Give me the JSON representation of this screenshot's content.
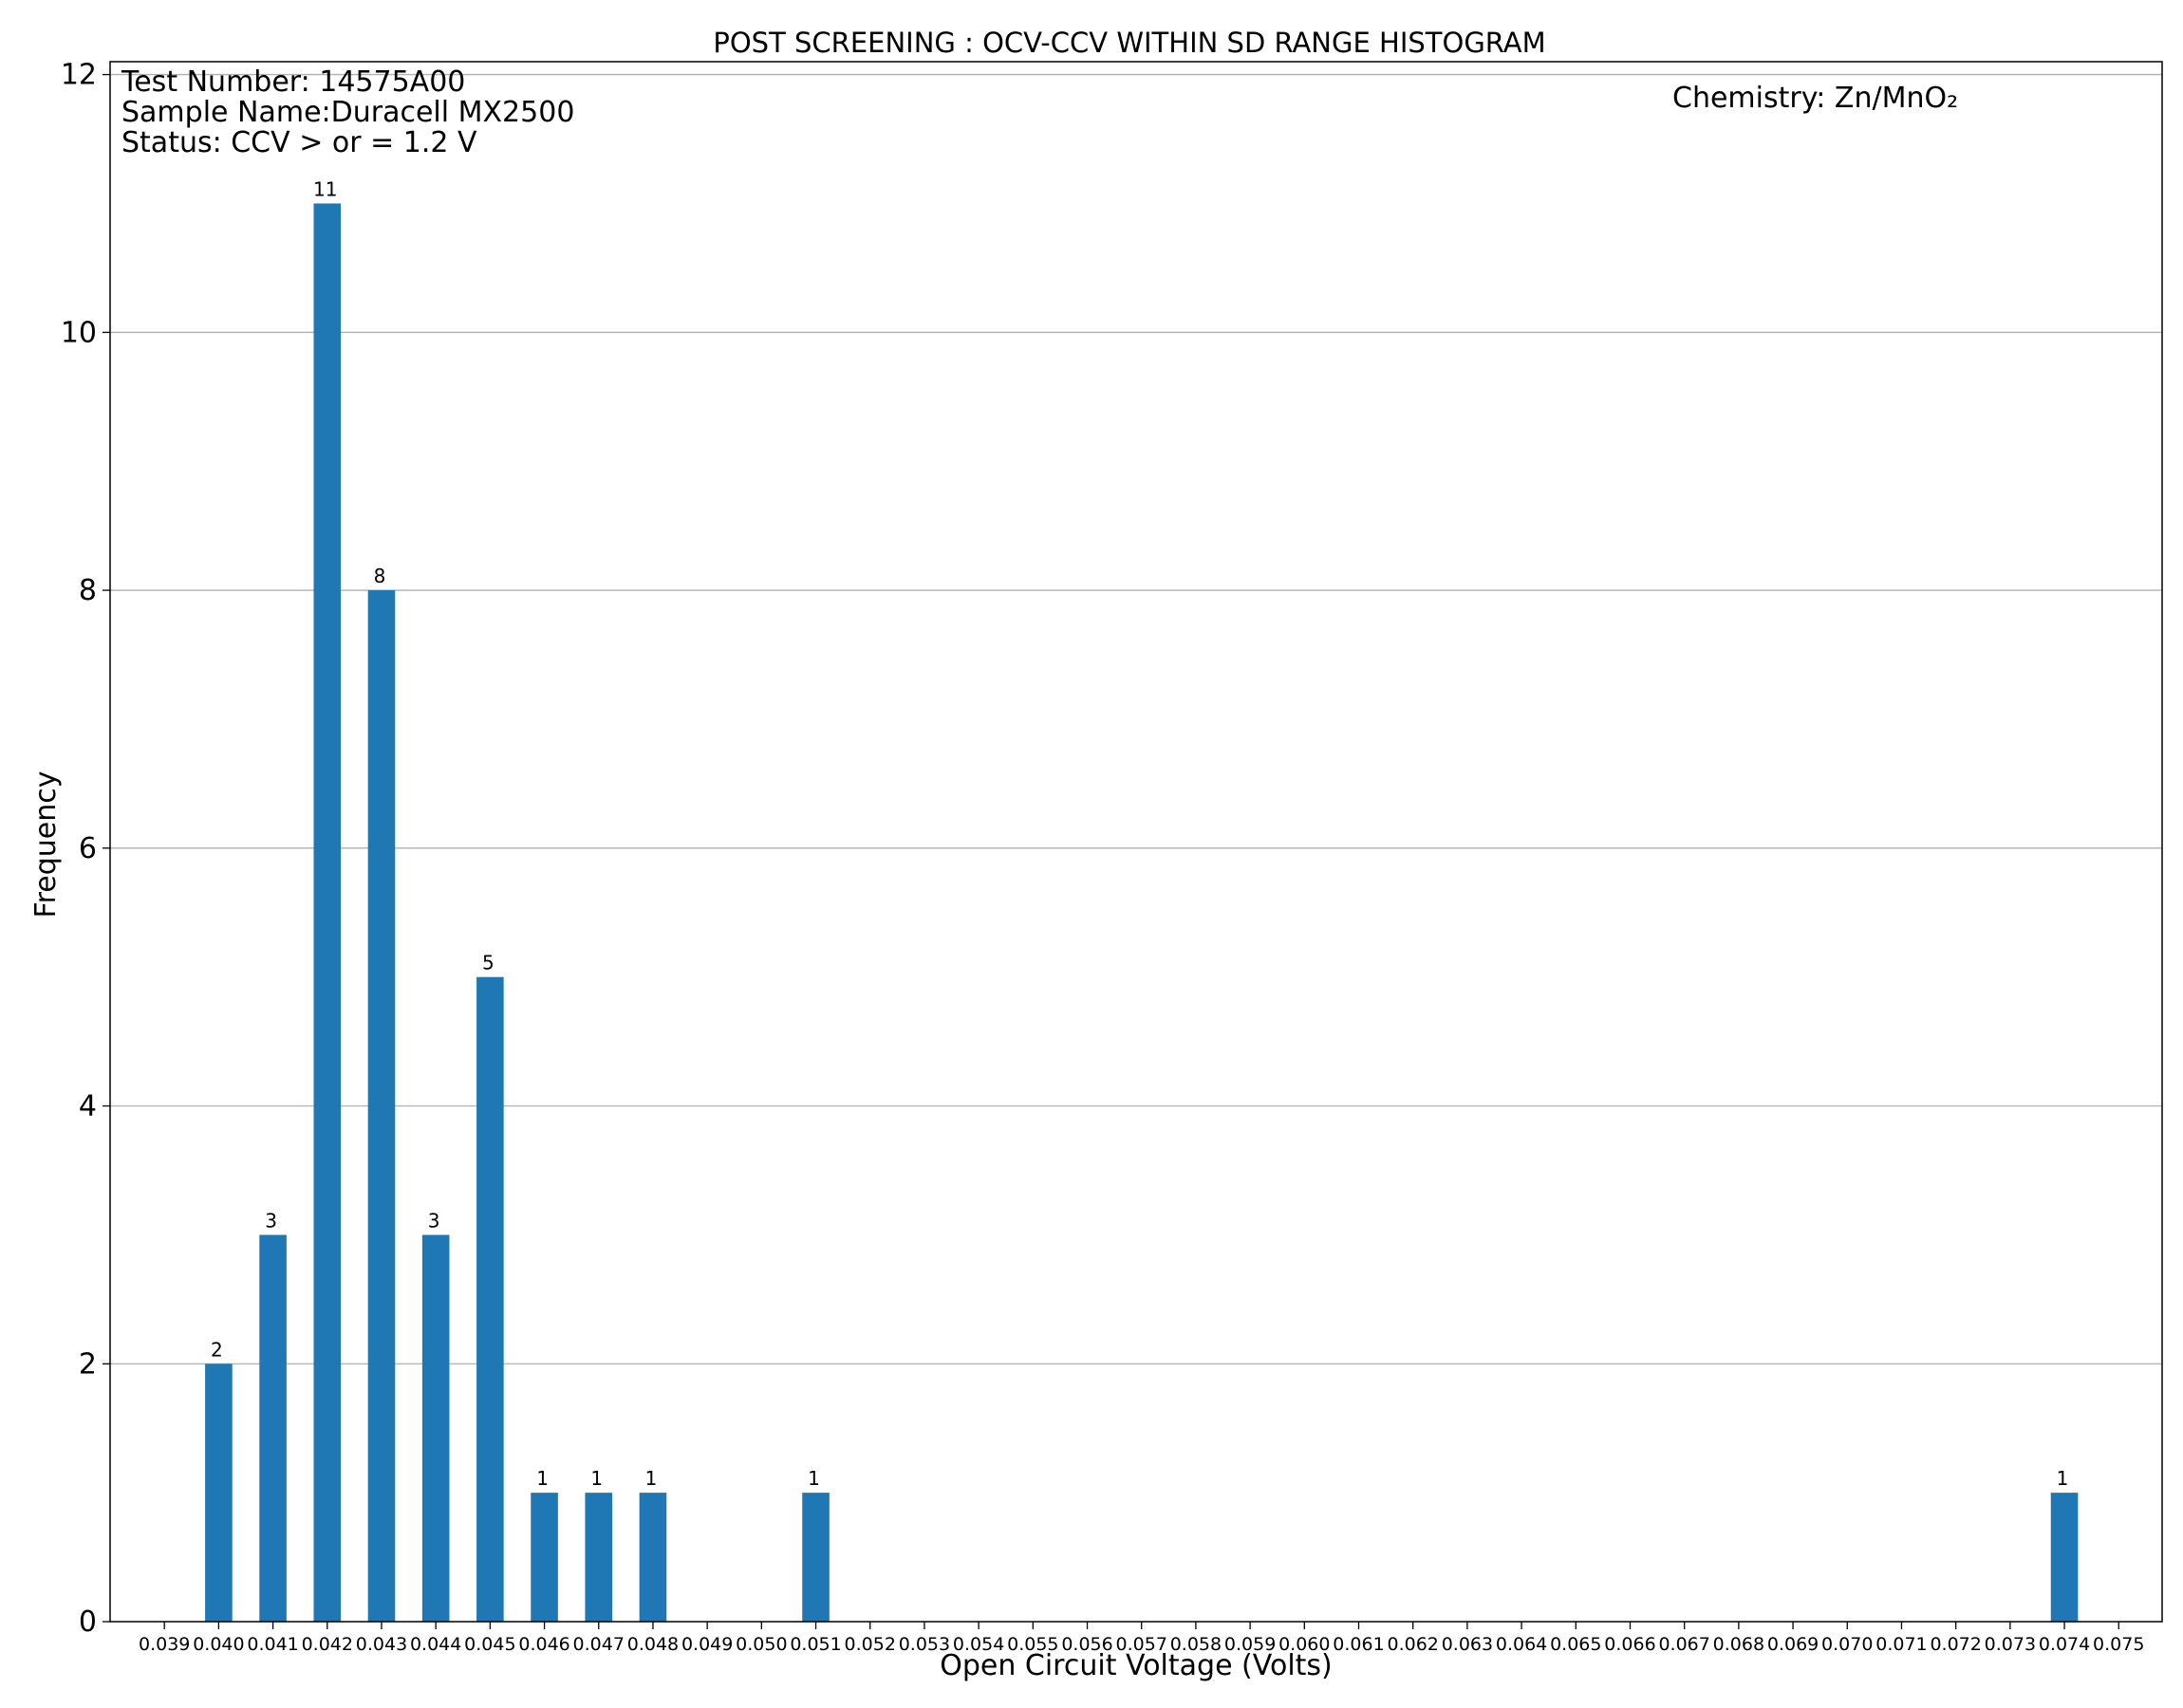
{
  "chart_data": {
    "type": "bar",
    "title": "POST SCREENING :  OCV-CCV WITHIN SD RANGE HISTOGRAM",
    "annotations": {
      "test_number": "Test Number: 14575A00",
      "sample_name": "Sample Name:Duracell MX2500",
      "status": "Status: CCV > or = 1.2 V",
      "chemistry": "Chemistry: Zn/MnO₂"
    },
    "xlabel": "Open Circuit Voltage (Volts)",
    "ylabel": "Frequency",
    "xlim": [
      0.038,
      0.0758
    ],
    "ylim": [
      0,
      12.1
    ],
    "x_ticks": [
      "0.039",
      "0.040",
      "0.041",
      "0.042",
      "0.043",
      "0.044",
      "0.045",
      "0.046",
      "0.047",
      "0.048",
      "0.049",
      "0.050",
      "0.051",
      "0.052",
      "0.053",
      "0.054",
      "0.055",
      "0.056",
      "0.057",
      "0.058",
      "0.059",
      "0.060",
      "0.061",
      "0.062",
      "0.063",
      "0.064",
      "0.065",
      "0.066",
      "0.067",
      "0.068",
      "0.069",
      "0.070",
      "0.071",
      "0.072",
      "0.073",
      "0.074",
      "0.075"
    ],
    "y_ticks": [
      "0",
      "2",
      "4",
      "6",
      "8",
      "10",
      "12"
    ],
    "bars": [
      {
        "x": 0.04,
        "value": 2,
        "label": "2"
      },
      {
        "x": 0.041,
        "value": 3,
        "label": "3"
      },
      {
        "x": 0.042,
        "value": 11,
        "label": "11"
      },
      {
        "x": 0.043,
        "value": 8,
        "label": "8"
      },
      {
        "x": 0.044,
        "value": 3,
        "label": "3"
      },
      {
        "x": 0.045,
        "value": 5,
        "label": "5"
      },
      {
        "x": 0.046,
        "value": 1,
        "label": "1"
      },
      {
        "x": 0.047,
        "value": 1,
        "label": "1"
      },
      {
        "x": 0.048,
        "value": 1,
        "label": "1"
      },
      {
        "x": 0.051,
        "value": 1,
        "label": "1"
      },
      {
        "x": 0.074,
        "value": 1,
        "label": "1"
      }
    ],
    "bar_width": 0.0005,
    "bar_color": "#1f77b4",
    "grid": "horizontal"
  }
}
